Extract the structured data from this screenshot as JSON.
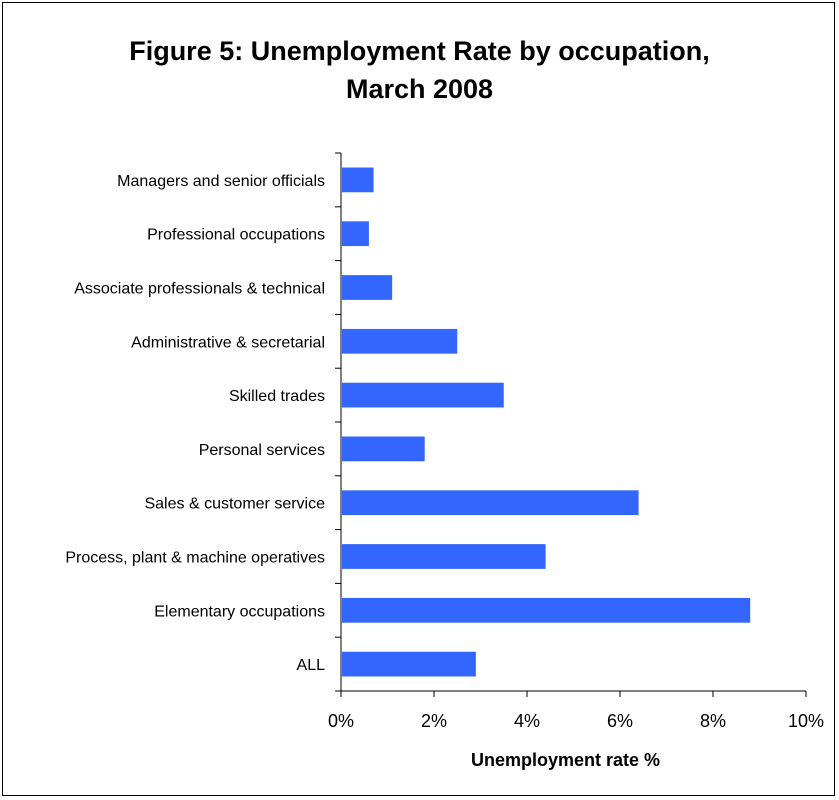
{
  "chart_data": {
    "type": "bar",
    "orientation": "horizontal",
    "title": "Figure 5: Unemployment Rate by occupation,",
    "subtitle": "March 2008",
    "xlabel": "Unemployment rate %",
    "ylabel": "",
    "categories": [
      "Managers and senior officials",
      "Professional occupations",
      "Associate professionals & technical",
      "Administrative & secretarial",
      "Skilled trades",
      "Personal services",
      "Sales & customer service",
      "Process, plant & machine operatives",
      "Elementary occupations",
      "ALL"
    ],
    "values": [
      0.7,
      0.6,
      1.1,
      2.5,
      3.5,
      1.8,
      6.4,
      4.4,
      8.8,
      2.9
    ],
    "xlim": [
      0,
      10
    ],
    "x_ticks": [
      "0%",
      "2%",
      "4%",
      "6%",
      "8%",
      "10%"
    ],
    "x_tick_values": [
      0,
      2,
      4,
      6,
      8,
      10
    ],
    "bar_color": "#3366ff",
    "grid": false,
    "legend": "none"
  }
}
